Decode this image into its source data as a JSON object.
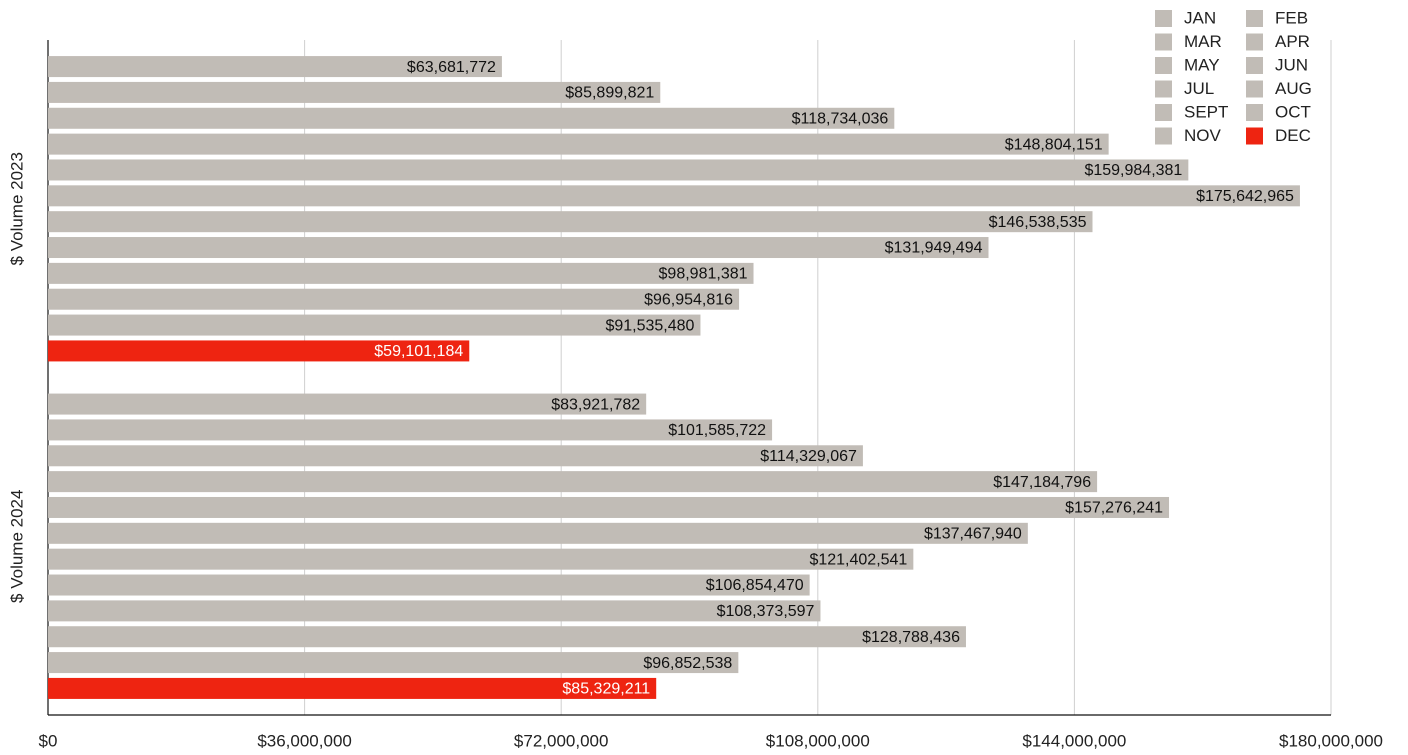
{
  "chart_data": {
    "type": "barh",
    "categories": [
      "$ Volume 2023",
      "$ Volume 2024"
    ],
    "series": [
      {
        "name": "JAN",
        "color": "#c1bcb6",
        "values": [
          63681772,
          83921782
        ],
        "value_labels": [
          "$63,681,772",
          "$83,921,782"
        ]
      },
      {
        "name": "FEB",
        "color": "#c1bcb6",
        "values": [
          85899821,
          101585722
        ],
        "value_labels": [
          "$85,899,821",
          "$101,585,722"
        ]
      },
      {
        "name": "MAR",
        "color": "#c1bcb6",
        "values": [
          118734036,
          114329067
        ],
        "value_labels": [
          "$118,734,036",
          "$114,329,067"
        ]
      },
      {
        "name": "APR",
        "color": "#c1bcb6",
        "values": [
          148804151,
          147184796
        ],
        "value_labels": [
          "$148,804,151",
          "$147,184,796"
        ]
      },
      {
        "name": "MAY",
        "color": "#c1bcb6",
        "values": [
          159984381,
          157276241
        ],
        "value_labels": [
          "$159,984,381",
          "$157,276,241"
        ]
      },
      {
        "name": "JUN",
        "color": "#c1bcb6",
        "values": [
          175642965,
          137467940
        ],
        "value_labels": [
          "$175,642,965",
          "$137,467,940"
        ]
      },
      {
        "name": "JUL",
        "color": "#c1bcb6",
        "values": [
          146538535,
          121402541
        ],
        "value_labels": [
          "$146,538,535",
          "$121,402,541"
        ]
      },
      {
        "name": "AUG",
        "color": "#c1bcb6",
        "values": [
          131949494,
          106854470
        ],
        "value_labels": [
          "$131,949,494",
          "$106,854,470"
        ]
      },
      {
        "name": "SEPT",
        "color": "#c1bcb6",
        "values": [
          98981381,
          108373597
        ],
        "value_labels": [
          "$98,981,381",
          "$108,373,597"
        ]
      },
      {
        "name": "OCT",
        "color": "#c1bcb6",
        "values": [
          96954816,
          128788436
        ],
        "value_labels": [
          "$96,954,816",
          "$128,788,436"
        ]
      },
      {
        "name": "NOV",
        "color": "#c1bcb6",
        "values": [
          91535480,
          96852538
        ],
        "value_labels": [
          "$91,535,480",
          "$96,852,538"
        ]
      },
      {
        "name": "DEC",
        "color": "#ee2411",
        "values": [
          59101184,
          85329211
        ],
        "value_labels": [
          "$59,101,184",
          "$85,329,211"
        ]
      }
    ],
    "xlim": [
      0,
      180000000
    ],
    "xticks": [
      {
        "value": 0,
        "label": "$0"
      },
      {
        "value": 36000000,
        "label": "$36,000,000"
      },
      {
        "value": 72000000,
        "label": "$72,000,000"
      },
      {
        "value": 108000000,
        "label": "$108,000,000"
      },
      {
        "value": 144000000,
        "label": "$144,000,000"
      },
      {
        "value": 180000000,
        "label": "$180,000,000"
      }
    ],
    "grid": true,
    "legend": "top-right"
  }
}
